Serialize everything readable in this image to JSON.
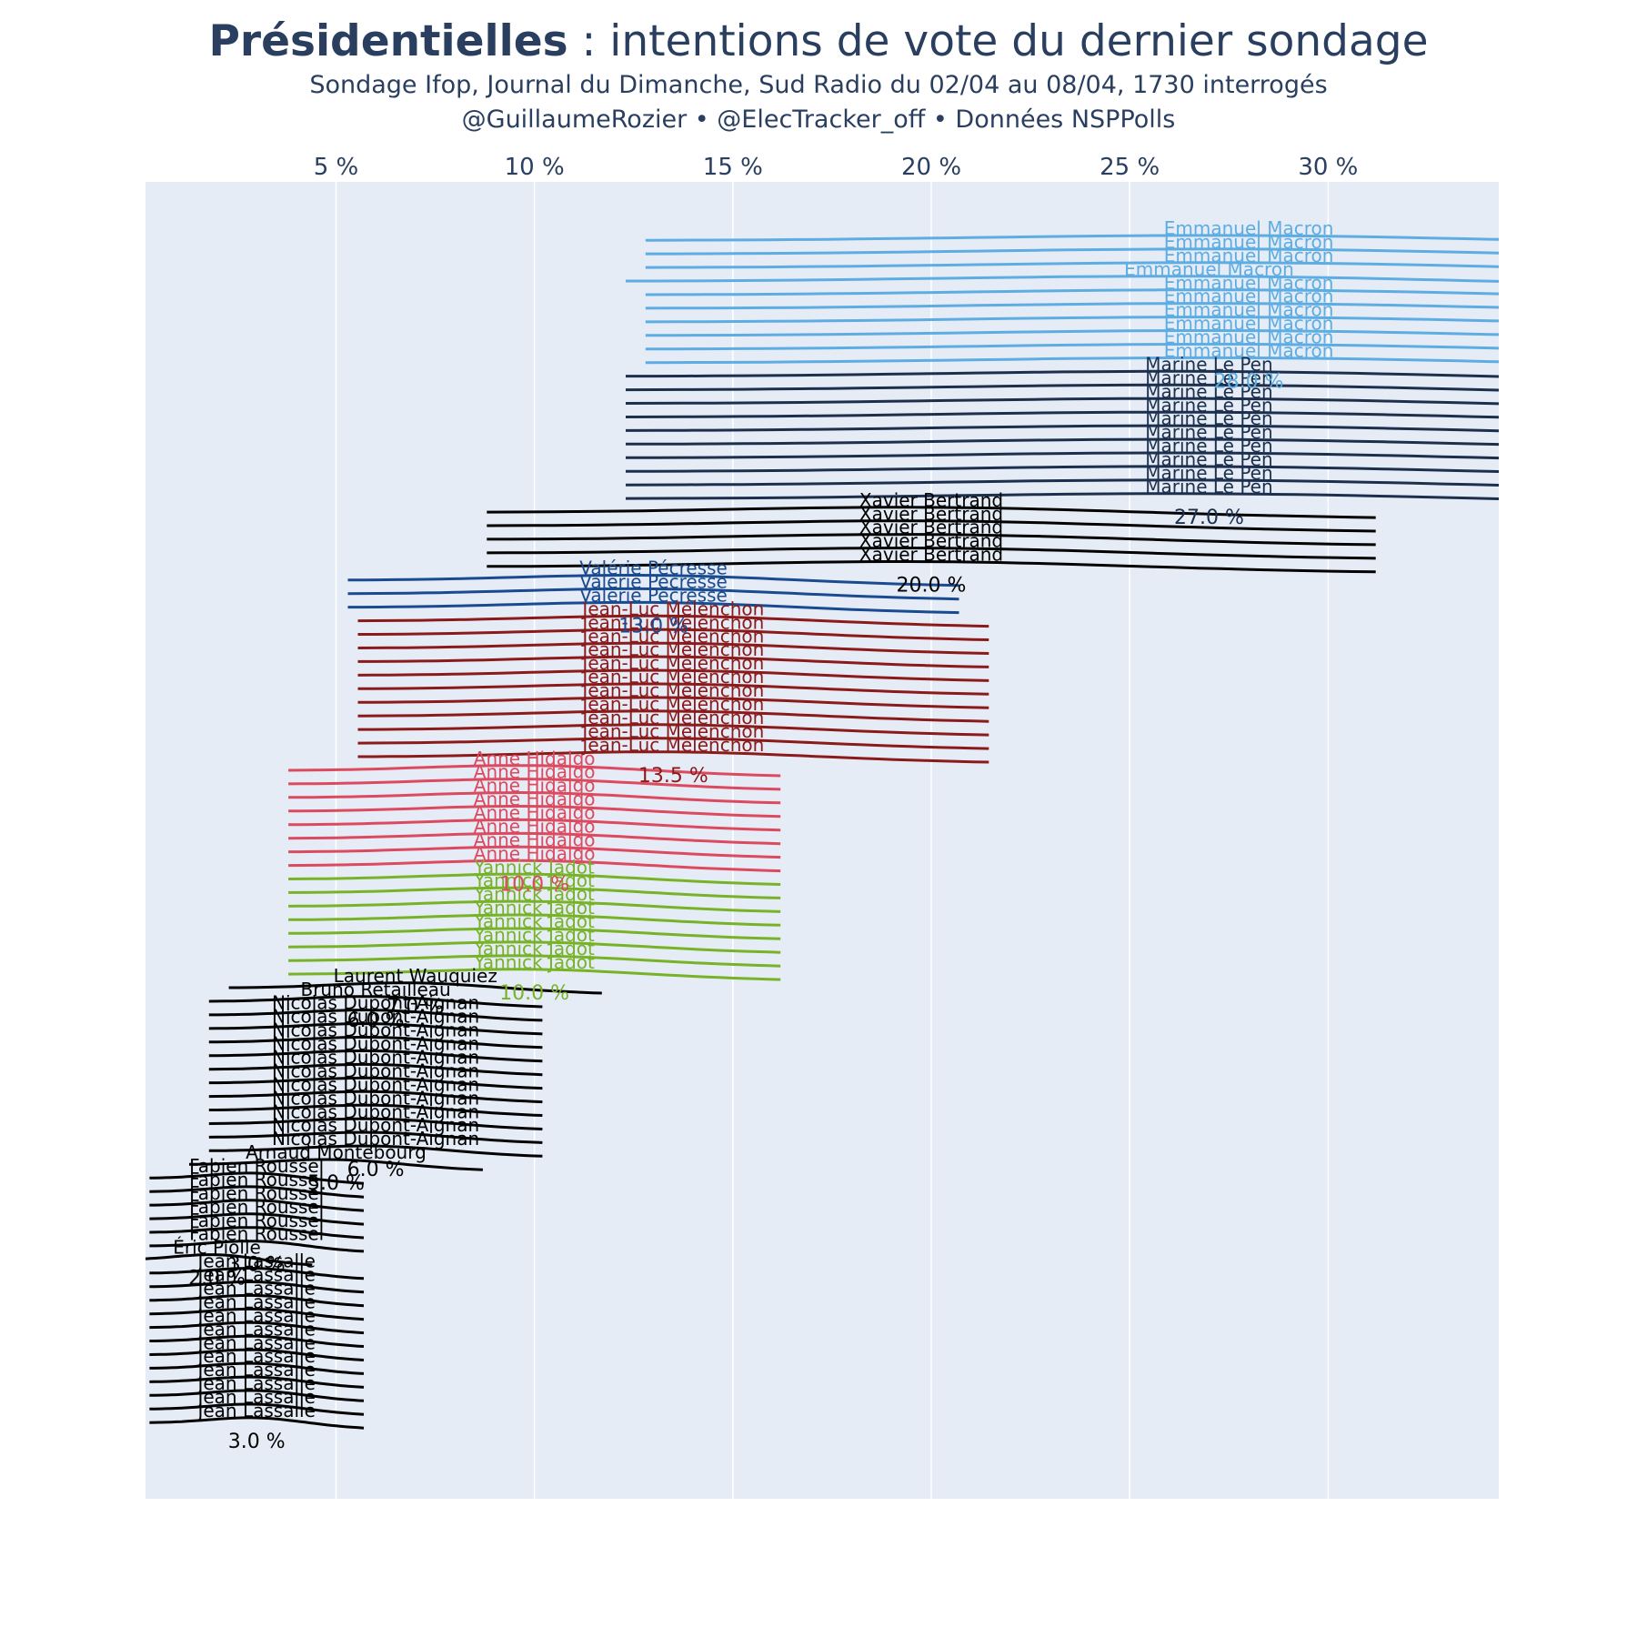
{
  "header": {
    "title_bold": "Présidentielles",
    "title_rest": " : intentions de vote du dernier sondage",
    "subtitle1": "Sondage Ifop, Journal du Dimanche, Sud Radio du 02/04 au 08/04, 1730 interrogés",
    "subtitle2": "@GuillaumeRozier • @ElecTracker_off • Données NSPPolls"
  },
  "chart_data": {
    "type": "line",
    "description_axis": "x axis on top in percent, candidates stacked vertically as small density curves",
    "xticks": [
      5,
      10,
      15,
      20,
      25,
      30
    ],
    "xtick_suffix": " %",
    "xlim": [
      0.2,
      34.3
    ],
    "grid": true,
    "background": "#e5ecf6",
    "candidates": [
      {
        "name": "Emmanuel Macron",
        "color": "#5dade2",
        "values": [
          28,
          28,
          28,
          27,
          28,
          28,
          28,
          28,
          28,
          28
        ],
        "label": "28.0 %"
      },
      {
        "name": "Marine Le Pen",
        "color": "#1c2f4d",
        "values": [
          27,
          27,
          27,
          27,
          27,
          27,
          27,
          27,
          27,
          27
        ],
        "label": "27.0 %"
      },
      {
        "name": "Xavier Bertrand",
        "color": "#000000",
        "values": [
          20,
          20,
          20,
          20,
          20
        ],
        "label": "20.0 %"
      },
      {
        "name": "Valérie Pécresse",
        "color": "#1a4a8f",
        "values": [
          13,
          13,
          13
        ],
        "label": "13.0 %"
      },
      {
        "name": "Jean-Luc Mélenchon",
        "color": "#8b1a1a",
        "values": [
          13.5,
          13.5,
          13.5,
          13.5,
          13.5,
          13.5,
          13.5,
          13.5,
          13.5,
          13.5,
          13.5
        ],
        "label": "13.5 %"
      },
      {
        "name": "Anne Hidalgo",
        "color": "#dc4a5f",
        "values": [
          10,
          10,
          10,
          10,
          10,
          10,
          10,
          10
        ],
        "label": "10.0 %"
      },
      {
        "name": "Yannick Jadot",
        "color": "#77b227",
        "values": [
          10,
          10,
          10,
          10,
          10,
          10,
          10,
          10
        ],
        "label": "10.0 %"
      },
      {
        "name": "Laurent Wauquiez",
        "color": "#000000",
        "values": [
          7
        ],
        "label": "7.0 %"
      },
      {
        "name": "Bruno Retailleau",
        "color": "#000000",
        "values": [
          6
        ],
        "label": "6.0 %"
      },
      {
        "name": "Nicolas Dupont-Aignan",
        "color": "#000000",
        "values": [
          6,
          6,
          6,
          6,
          6,
          6,
          6,
          6,
          6,
          6,
          6
        ],
        "label": "6.0 %"
      },
      {
        "name": "Arnaud Montebourg",
        "color": "#000000",
        "values": [
          5
        ],
        "label": "5.0 %"
      },
      {
        "name": "Fabien Roussel",
        "color": "#000000",
        "values": [
          3,
          3,
          3,
          3,
          3,
          3
        ],
        "label": "3.0 %"
      },
      {
        "name": "Éric Piolle",
        "color": "#000000",
        "values": [
          2
        ],
        "label": "2.0 %"
      },
      {
        "name": "Jean Lassalle",
        "color": "#000000",
        "values": [
          3,
          3,
          3,
          3,
          3,
          3,
          3,
          3,
          3,
          3,
          3,
          3
        ],
        "label": "3.0 %"
      }
    ]
  }
}
